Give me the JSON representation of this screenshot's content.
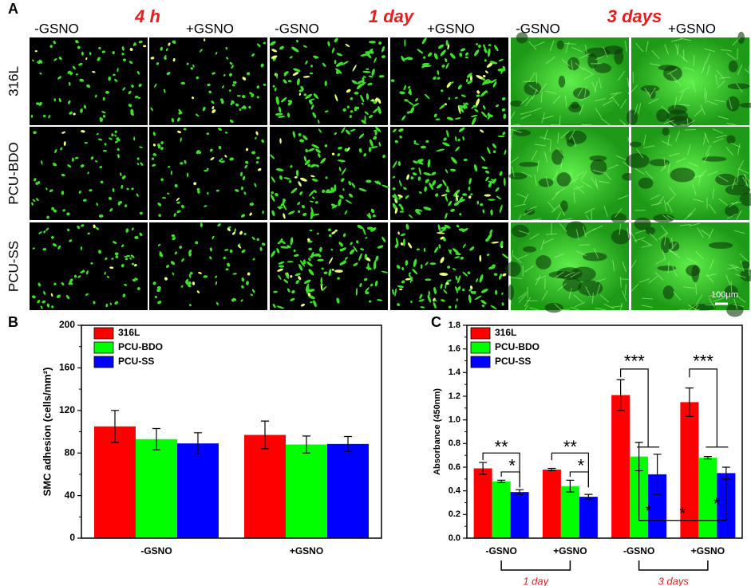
{
  "panel_a": {
    "label": "A",
    "time_labels": [
      "4 h",
      "1 day",
      "3 days"
    ],
    "column_labels": [
      "-GSNO",
      "+GSNO",
      "-GSNO",
      "+GSNO",
      "-GSNO",
      "+GSNO"
    ],
    "row_labels": [
      "316L",
      "PCU-BDO",
      "PCU-SS"
    ],
    "scale_bar": "100µm"
  },
  "chart_data": [
    {
      "type": "bar",
      "label": "B",
      "ylabel": "SMC adhesion (cells/mm²)",
      "categories": [
        "-GSNO",
        "+GSNO"
      ],
      "series": [
        {
          "name": "316L",
          "color": "#ff0000",
          "values": [
            105,
            97
          ],
          "errors": [
            15,
            13
          ]
        },
        {
          "name": "PCU-BDO",
          "color": "#00ff00",
          "values": [
            93,
            88
          ],
          "errors": [
            10,
            8
          ]
        },
        {
          "name": "PCU-SS",
          "color": "#0000ff",
          "values": [
            89,
            88.5
          ],
          "errors": [
            10,
            7
          ]
        }
      ],
      "ylim": [
        0,
        200
      ],
      "yticks": [
        0,
        40,
        80,
        120,
        160,
        200
      ]
    },
    {
      "type": "bar",
      "label": "C",
      "ylabel": "Absorbance (450nm)",
      "categories": [
        "-GSNO",
        "+GSNO",
        "-GSNO",
        "+GSNO"
      ],
      "groups": [
        "1 day",
        "3 days"
      ],
      "series": [
        {
          "name": "316L",
          "color": "#ff0000",
          "values": [
            0.59,
            0.58,
            1.21,
            1.15
          ],
          "errors": [
            0.05,
            0.01,
            0.13,
            0.12
          ]
        },
        {
          "name": "PCU-BDO",
          "color": "#00ff00",
          "values": [
            0.48,
            0.44,
            0.69,
            0.68
          ],
          "errors": [
            0.01,
            0.05,
            0.12,
            0.01
          ]
        },
        {
          "name": "PCU-SS",
          "color": "#0000ff",
          "values": [
            0.39,
            0.35,
            0.54,
            0.55
          ],
          "errors": [
            0.02,
            0.02,
            0.17,
            0.05
          ]
        }
      ],
      "ylim": [
        0,
        1.8
      ],
      "yticks": [
        {
          "value": 0,
          "label": "0.0"
        },
        0.2,
        0.4,
        0.6,
        0.8,
        {
          "value": 1,
          "label": "1.0"
        },
        1.2,
        1.4,
        1.6,
        1.8
      ],
      "annotations": [
        "**",
        "*",
        "**",
        "*",
        "***",
        "***",
        "*",
        "*",
        "*"
      ]
    }
  ]
}
